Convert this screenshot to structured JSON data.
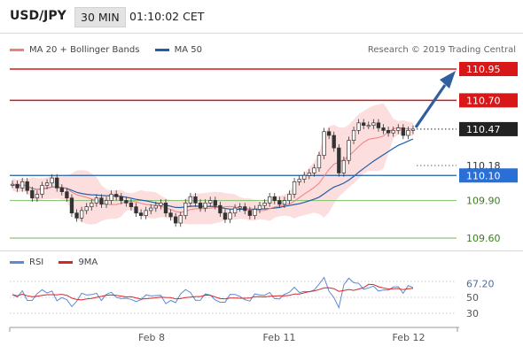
{
  "header": {
    "pair": "USD/JPY",
    "timeframe": "30 MIN",
    "time": "01:10:02 CET"
  },
  "legend": [
    {
      "label": "MA 20 + Bollinger Bands",
      "color": "#f08080"
    },
    {
      "label": "MA 50",
      "color": "#1f5fa8"
    }
  ],
  "credit": "Research © 2019 Trading Central",
  "rsi_legend": [
    {
      "label": "RSI",
      "color": "#5b8bd6"
    },
    {
      "label": "9MA",
      "color": "#d62728"
    }
  ],
  "chart_data": {
    "type": "line",
    "instrument": "USD/JPY",
    "y_range": [
      109.5,
      111.05
    ],
    "x_labels": [
      "Feb 8",
      "Feb 11",
      "Feb 12"
    ],
    "levels": [
      {
        "value": 110.95,
        "label": "110.95",
        "kind": "resistance"
      },
      {
        "value": 110.7,
        "label": "110.70",
        "kind": "resistance"
      },
      {
        "value": 110.47,
        "label": "110.47",
        "kind": "price"
      },
      {
        "value": 110.18,
        "label": "110.18",
        "kind": "ma"
      },
      {
        "value": 110.1,
        "label": "110.10",
        "kind": "pivot"
      },
      {
        "value": 109.9,
        "label": "109.90",
        "kind": "support"
      },
      {
        "value": 109.6,
        "label": "109.60",
        "kind": "support"
      }
    ],
    "forecast_target": 110.95,
    "rsi": {
      "current": 67.2,
      "current_label": "67.20",
      "ticks": [
        "50",
        "30"
      ],
      "ref_lines": [
        70,
        50,
        30
      ]
    },
    "close": [
      110.03,
      110.0,
      110.05,
      109.98,
      109.92,
      109.95,
      110.02,
      110.04,
      110.08,
      110.0,
      109.97,
      109.92,
      109.8,
      109.76,
      109.82,
      109.85,
      109.88,
      109.92,
      109.87,
      109.9,
      109.95,
      109.93,
      109.9,
      109.88,
      109.85,
      109.8,
      109.78,
      109.82,
      109.84,
      109.86,
      109.88,
      109.8,
      109.77,
      109.72,
      109.78,
      109.88,
      109.93,
      109.88,
      109.84,
      109.88,
      109.9,
      109.86,
      109.8,
      109.75,
      109.8,
      109.84,
      109.85,
      109.82,
      109.78,
      109.83,
      109.86,
      109.88,
      109.93,
      109.9,
      109.87,
      109.9,
      109.95,
      110.05,
      110.07,
      110.1,
      110.12,
      110.16,
      110.26,
      110.45,
      110.42,
      110.32,
      110.12,
      110.22,
      110.38,
      110.46,
      110.52,
      110.5,
      110.5,
      110.52,
      110.48,
      110.46,
      110.44,
      110.46,
      110.48,
      110.42,
      110.46,
      110.47
    ]
  }
}
